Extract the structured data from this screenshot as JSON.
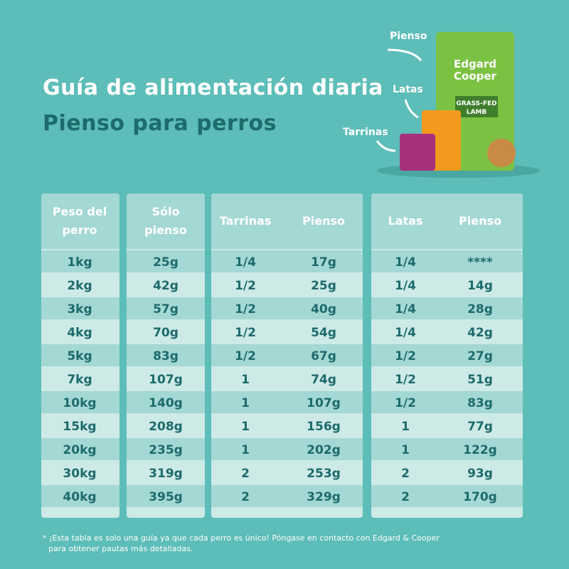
{
  "header": {
    "title": "Guía de alimentación diaria",
    "subtitle": "Pienso para perros"
  },
  "products": {
    "labels": [
      "Pienso",
      "Latas",
      "Tarrinas"
    ],
    "bag_texts": [
      "Edgard",
      "Cooper",
      "GRASS-FED",
      "LAMB"
    ]
  },
  "table": {
    "headers": [
      "Peso del perro",
      "Sólo pienso",
      "Tarrinas",
      "Pienso",
      "Latas",
      "Pienso"
    ],
    "rows": [
      [
        "1kg",
        "25g",
        "1/4",
        "17g",
        "1/4",
        "****"
      ],
      [
        "2kg",
        "42g",
        "1/2",
        "25g",
        "1/4",
        "14g"
      ],
      [
        "3kg",
        "57g",
        "1/2",
        "40g",
        "1/4",
        "28g"
      ],
      [
        "4kg",
        "70g",
        "1/2",
        "54g",
        "1/4",
        "42g"
      ],
      [
        "5kg",
        "83g",
        "1/2",
        "67g",
        "1/2",
        "27g"
      ],
      [
        "7kg",
        "107g",
        "1",
        "74g",
        "1/2",
        "51g"
      ],
      [
        "10kg",
        "140g",
        "1",
        "107g",
        "1/2",
        "83g"
      ],
      [
        "15kg",
        "208g",
        "1",
        "156g",
        "1",
        "77g"
      ],
      [
        "20kg",
        "235g",
        "1",
        "202g",
        "1",
        "122g"
      ],
      [
        "30kg",
        "319g",
        "2",
        "253g",
        "2",
        "93g"
      ],
      [
        "40kg",
        "395g",
        "2",
        "329g",
        "2",
        "170g"
      ]
    ]
  },
  "footnote": [
    "* ¡Esta tabla es solo una guía ya que cada perro es único! Póngase en contacto con Edgard & Cooper",
    "para obtener pautas más detalladas."
  ]
}
